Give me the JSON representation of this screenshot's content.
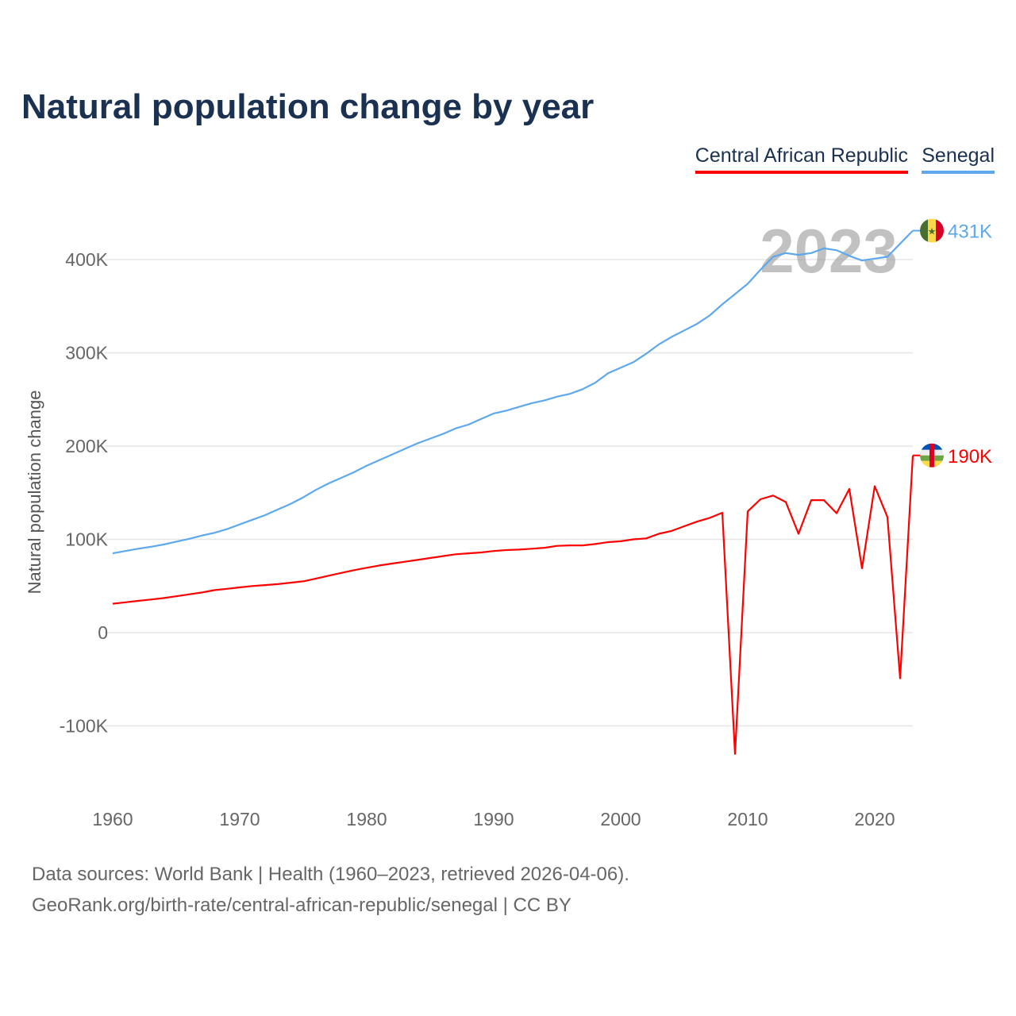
{
  "title": "Natural population change by year",
  "footer": {
    "line1": "Data sources: World Bank | Health (1960–2023, retrieved 2026-04-06).",
    "line2": "GeoRank.org/birth-rate/central-african-republic/senegal | CC BY"
  },
  "chart_data": {
    "type": "line",
    "title": "Natural population change by year",
    "xlabel": "",
    "ylabel": "Natural population change",
    "xlim": [
      1960,
      2023
    ],
    "ylim": [
      -130000,
      440000
    ],
    "x_ticks": [
      1960,
      1970,
      1980,
      1990,
      2000,
      2010,
      2020
    ],
    "y_ticks": [
      -100000,
      0,
      100000,
      200000,
      300000,
      400000
    ],
    "y_tick_labels": [
      "-100K",
      "0",
      "100K",
      "200K",
      "300K",
      "400K"
    ],
    "grid": true,
    "legend_position": "top-right",
    "year_watermark": "2023",
    "series": [
      {
        "name": "Central African Republic",
        "color": "#ff0000",
        "end_label": "190K",
        "flag": "central-african-republic-flag-icon",
        "values": [
          31000,
          32500,
          34000,
          35500,
          37000,
          39000,
          41000,
          43000,
          45500,
          47000,
          48500,
          50000,
          51000,
          52000,
          53500,
          55000,
          58000,
          61000,
          64000,
          67000,
          69500,
          72000,
          74000,
          76000,
          78000,
          80000,
          82000,
          84000,
          85000,
          86000,
          87500,
          88500,
          89000,
          90000,
          91000,
          93000,
          93500,
          93500,
          95000,
          97000,
          98000,
          100000,
          101000,
          106000,
          109000,
          114000,
          119000,
          123000,
          128500,
          -130000,
          130000,
          143000,
          147000,
          140000,
          106000,
          142000,
          142000,
          128000,
          154000,
          69000,
          157000,
          124000,
          -49000,
          190000
        ]
      },
      {
        "name": "Senegal",
        "color": "#5ea8ee",
        "end_label": "431K",
        "flag": "senegal-flag-icon",
        "values": [
          85000,
          87500,
          90000,
          92000,
          94500,
          97500,
          100500,
          104000,
          107000,
          111000,
          116000,
          121000,
          126000,
          132000,
          138000,
          145000,
          153000,
          160000,
          166000,
          172000,
          179000,
          185000,
          191000,
          197000,
          203000,
          208000,
          213000,
          219000,
          223000,
          229000,
          235000,
          238000,
          242000,
          246000,
          249000,
          253000,
          256000,
          261000,
          268000,
          278000,
          284000,
          290000,
          299000,
          309000,
          317000,
          324000,
          331000,
          340000,
          352000,
          363000,
          374000,
          389000,
          403000,
          407000,
          405000,
          407000,
          412000,
          410000,
          404000,
          399000,
          401000,
          403000,
          417000,
          431000
        ]
      }
    ]
  }
}
